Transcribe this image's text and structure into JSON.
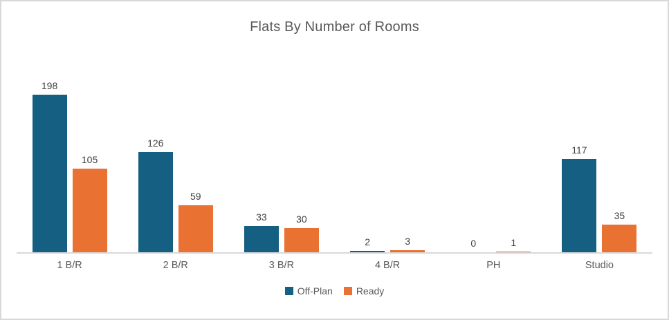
{
  "window": {
    "background_color": "#ffffff",
    "border_color": "#d8d8d8",
    "axis_line_color": "#d9d9d9",
    "title_color": "#595959",
    "data_label_color": "#404040",
    "axis_label_color": "#595959"
  },
  "chart_data": {
    "type": "bar",
    "title": "Flats By Number of Rooms",
    "categories": [
      "1 B/R",
      "2 B/R",
      "3 B/R",
      "4 B/R",
      "PH",
      "Studio"
    ],
    "series": [
      {
        "name": "Off-Plan",
        "color": "#156082",
        "values": [
          198,
          126,
          33,
          2,
          0,
          117
        ]
      },
      {
        "name": "Ready",
        "color": "#E97132",
        "values": [
          105,
          59,
          30,
          3,
          1,
          35
        ]
      }
    ],
    "xlabel": "",
    "ylabel": "",
    "ylim": [
      0,
      210
    ],
    "grid": false,
    "y_axis_visible": false,
    "data_labels": true,
    "legend_position": "bottom"
  }
}
